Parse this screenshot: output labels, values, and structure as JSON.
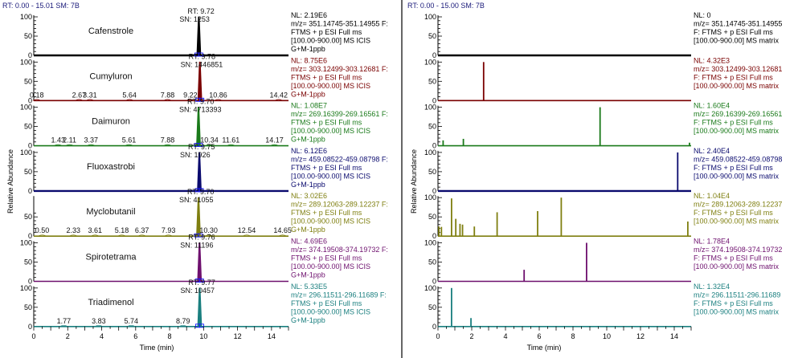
{
  "chart_data": [
    {
      "type": "line",
      "panel": "left",
      "header": "RT: 0.00 - 15.01   SM: 7B",
      "xlabel": "Time (min)",
      "ylabel": "Relative Abundance",
      "xlim": [
        0,
        15
      ],
      "x_ticks": [
        "0",
        "2",
        "4",
        "6",
        "8",
        "10",
        "12",
        "14"
      ],
      "series": [
        {
          "name": "Cafenstrole",
          "color": "#000000",
          "y_ticks": [
            "100",
            "50",
            "0"
          ],
          "peak_rt": "RT: 9.72",
          "peak_sn": "SN: 1253",
          "peak_x": 9.72,
          "peak_y": 100,
          "minor_peaks": [],
          "info": [
            "NL: 2.19E6",
            "m/z= 351.14745-351.14955 F:",
            "FTMS + p ESI Full ms",
            "[100.00-900.00]  MS  ICIS",
            "G+M-1ppb"
          ]
        },
        {
          "name": "Cumyluron",
          "color": "#7a0000",
          "y_ticks": [
            "100",
            "50",
            "0"
          ],
          "peak_rt": "RT: 9.78",
          "peak_sn": "SN: 1446851",
          "peak_x": 9.78,
          "peak_y": 100,
          "minor_peaks": [
            {
              "x": 0.18,
              "label": "0.18"
            },
            {
              "x": 2.67,
              "label": "2.67"
            },
            {
              "x": 3.31,
              "label": "3.31"
            },
            {
              "x": 5.64,
              "label": "5.64"
            },
            {
              "x": 7.88,
              "label": "7.88"
            },
            {
              "x": 9.22,
              "label": "9.22"
            },
            {
              "x": 10.86,
              "label": "10.86"
            },
            {
              "x": 14.42,
              "label": "14.42"
            }
          ],
          "info": [
            "NL: 8.75E6",
            "m/z= 303.12499-303.12681 F:",
            "FTMS + p ESI Full ms",
            "[100.00-900.00]  MS  ICIS",
            "G+M-1ppb"
          ]
        },
        {
          "name": "Daimuron",
          "color": "#1a7a1a",
          "y_ticks": [
            "100",
            "50",
            "0"
          ],
          "peak_rt": "RT: 9.70",
          "peak_sn": "SN: 4713393",
          "peak_x": 9.7,
          "peak_y": 100,
          "minor_peaks": [
            {
              "x": 1.43,
              "label": "1.43"
            },
            {
              "x": 2.11,
              "label": "2.11"
            },
            {
              "x": 3.37,
              "label": "3.37"
            },
            {
              "x": 5.61,
              "label": "5.61"
            },
            {
              "x": 7.88,
              "label": "7.88"
            },
            {
              "x": 10.34,
              "label": "10.34"
            },
            {
              "x": 11.61,
              "label": "11.61"
            },
            {
              "x": 14.17,
              "label": "14.17"
            }
          ],
          "info": [
            "NL: 1.08E7",
            "m/z= 269.16399-269.16561 F:",
            "FTMS + p ESI Full ms",
            "[100.00-900.00]  MS  ICIS",
            "G+M-1ppb"
          ]
        },
        {
          "name": "Fluoxastrobi",
          "color": "#0a0a6e",
          "y_ticks": [
            "100",
            "50",
            "0"
          ],
          "peak_rt": "RT: 9.75",
          "peak_sn": "SN: 1926",
          "peak_x": 9.75,
          "peak_y": 100,
          "minor_peaks": [],
          "info": [
            "NL: 6.12E6",
            "m/z= 459.08522-459.08798 F:",
            "FTMS + p ESI Full ms",
            "[100.00-900.00]  MS  ICIS",
            "G+M-1ppb"
          ]
        },
        {
          "name": "Myclobutanil",
          "color": "#7f7f10",
          "y_ticks": [
            "50",
            "0"
          ],
          "peak_rt": "RT: 9.70",
          "peak_sn": "SN: 41055",
          "peak_x": 9.7,
          "peak_y": 100,
          "minor_peaks": [
            {
              "x": 0.5,
              "label": "0.50"
            },
            {
              "x": 2.33,
              "label": "2.33"
            },
            {
              "x": 3.61,
              "label": "3.61"
            },
            {
              "x": 5.18,
              "label": "5.18"
            },
            {
              "x": 6.37,
              "label": "6.37"
            },
            {
              "x": 7.93,
              "label": "7.93"
            },
            {
              "x": 10.3,
              "label": "10.30"
            },
            {
              "x": 12.54,
              "label": "12.54"
            },
            {
              "x": 14.65,
              "label": "14.65"
            }
          ],
          "info": [
            "NL: 3.02E6",
            "m/z= 289.12063-289.12237 F:",
            "FTMS + p ESI Full ms",
            "[100.00-900.00]  MS  ICIS",
            "G+M-1ppb"
          ]
        },
        {
          "name": "Spirotetrama",
          "color": "#6e106e",
          "y_ticks": [
            "100",
            "50",
            "0"
          ],
          "peak_rt": "RT: 9.76",
          "peak_sn": "SN: 11196",
          "peak_x": 9.76,
          "peak_y": 100,
          "minor_peaks": [],
          "info": [
            "NL: 4.69E6",
            "m/z= 374.19508-374.19732 F:",
            "FTMS + p ESI Full ms",
            "[100.00-900.00]  MS  ICIS",
            "G+M-1ppb"
          ]
        },
        {
          "name": "Triadimenol",
          "color": "#1a7f7f",
          "y_ticks": [
            "100",
            "50",
            "0"
          ],
          "peak_rt": "RT: 9.77",
          "peak_sn": "SN: 10457",
          "peak_x": 9.77,
          "peak_y": 100,
          "minor_peaks": [
            {
              "x": 1.77,
              "label": "1.77"
            },
            {
              "x": 3.83,
              "label": "3.83"
            },
            {
              "x": 5.74,
              "label": "5.74"
            },
            {
              "x": 8.79,
              "label": "8.79"
            }
          ],
          "info": [
            "NL: 5.33E5",
            "m/z= 296.11511-296.11689 F:",
            "FTMS + p ESI Full ms",
            "[100.00-900.00]  MS  ICIS",
            "G+M-1ppb"
          ]
        }
      ]
    },
    {
      "type": "bar",
      "panel": "right",
      "header": "RT: 0.00 - 15.00   SM: 7B",
      "xlabel": "Time (min)",
      "ylabel": "Relative Abundance",
      "xlim": [
        0,
        15
      ],
      "x_ticks": [
        "0",
        "2",
        "4",
        "6",
        "8",
        "10",
        "12",
        "14"
      ],
      "series": [
        {
          "color": "#000000",
          "y_ticks": [
            "100",
            "50",
            "0"
          ],
          "peaks": [],
          "info": [
            "NL: 0",
            "m/z= 351.14745-351.14955",
            "F: FTMS + p ESI Full ms",
            "[100.00-900.00]  MS matrix"
          ]
        },
        {
          "color": "#7a0000",
          "y_ticks": [
            "100",
            "50",
            "0"
          ],
          "peaks": [
            {
              "x": 2.7,
              "y": 100
            }
          ],
          "info": [
            "NL: 4.32E3",
            "m/z= 303.12499-303.12681",
            "F: FTMS + p ESI Full ms",
            "[100.00-900.00]  MS matrix"
          ]
        },
        {
          "color": "#1a7a1a",
          "y_ticks": [
            "100",
            "50",
            "0"
          ],
          "peaks": [
            {
              "x": 0.3,
              "y": 14
            },
            {
              "x": 1.5,
              "y": 18
            },
            {
              "x": 9.6,
              "y": 100
            },
            {
              "x": 14.9,
              "y": 8
            }
          ],
          "info": [
            "NL: 1.60E4",
            "m/z= 269.16399-269.16561",
            "F: FTMS + p ESI Full ms",
            "[100.00-900.00]  MS matrix"
          ]
        },
        {
          "color": "#0a0a6e",
          "y_ticks": [
            "100",
            "50",
            "0"
          ],
          "peaks": [
            {
              "x": 14.2,
              "y": 100
            }
          ],
          "info": [
            "NL: 2.40E4",
            "m/z= 459.08522-459.08798",
            "F: FTMS + p ESI Full ms",
            "[100.00-900.00]  MS matrix"
          ]
        },
        {
          "color": "#7f7f10",
          "y_ticks": [
            "100",
            "50",
            "0"
          ],
          "peaks": [
            {
              "x": 0.05,
              "y": 25
            },
            {
              "x": 0.2,
              "y": 24
            },
            {
              "x": 0.8,
              "y": 98
            },
            {
              "x": 1.05,
              "y": 45
            },
            {
              "x": 1.3,
              "y": 32
            },
            {
              "x": 1.45,
              "y": 30
            },
            {
              "x": 2.15,
              "y": 25
            },
            {
              "x": 3.5,
              "y": 62
            },
            {
              "x": 5.9,
              "y": 65
            },
            {
              "x": 7.3,
              "y": 100
            },
            {
              "x": 14.8,
              "y": 38
            }
          ],
          "info": [
            "NL: 1.04E4",
            "m/z= 289.12063-289.12237",
            "F: FTMS + p ESI Full ms",
            "[100.00-900.00]  MS matrix"
          ]
        },
        {
          "color": "#6e106e",
          "y_ticks": [
            "100",
            "50",
            "0"
          ],
          "peaks": [
            {
              "x": 5.1,
              "y": 30
            },
            {
              "x": 8.8,
              "y": 100
            }
          ],
          "info": [
            "NL: 1.78E4",
            "m/z= 374.19508-374.19732",
            "F: FTMS + p ESI Full ms",
            "[100.00-900.00]  MS matrix"
          ]
        },
        {
          "color": "#1a7f7f",
          "y_ticks": [
            "100",
            "50",
            "0"
          ],
          "peaks": [
            {
              "x": 0.8,
              "y": 100
            },
            {
              "x": 1.95,
              "y": 22
            }
          ],
          "info": [
            "NL: 1.32E4",
            "m/z= 296.11511-296.11689",
            "F: FTMS + p ESI Full ms",
            "[100.00-900.00]  MS matrix"
          ]
        }
      ]
    }
  ]
}
